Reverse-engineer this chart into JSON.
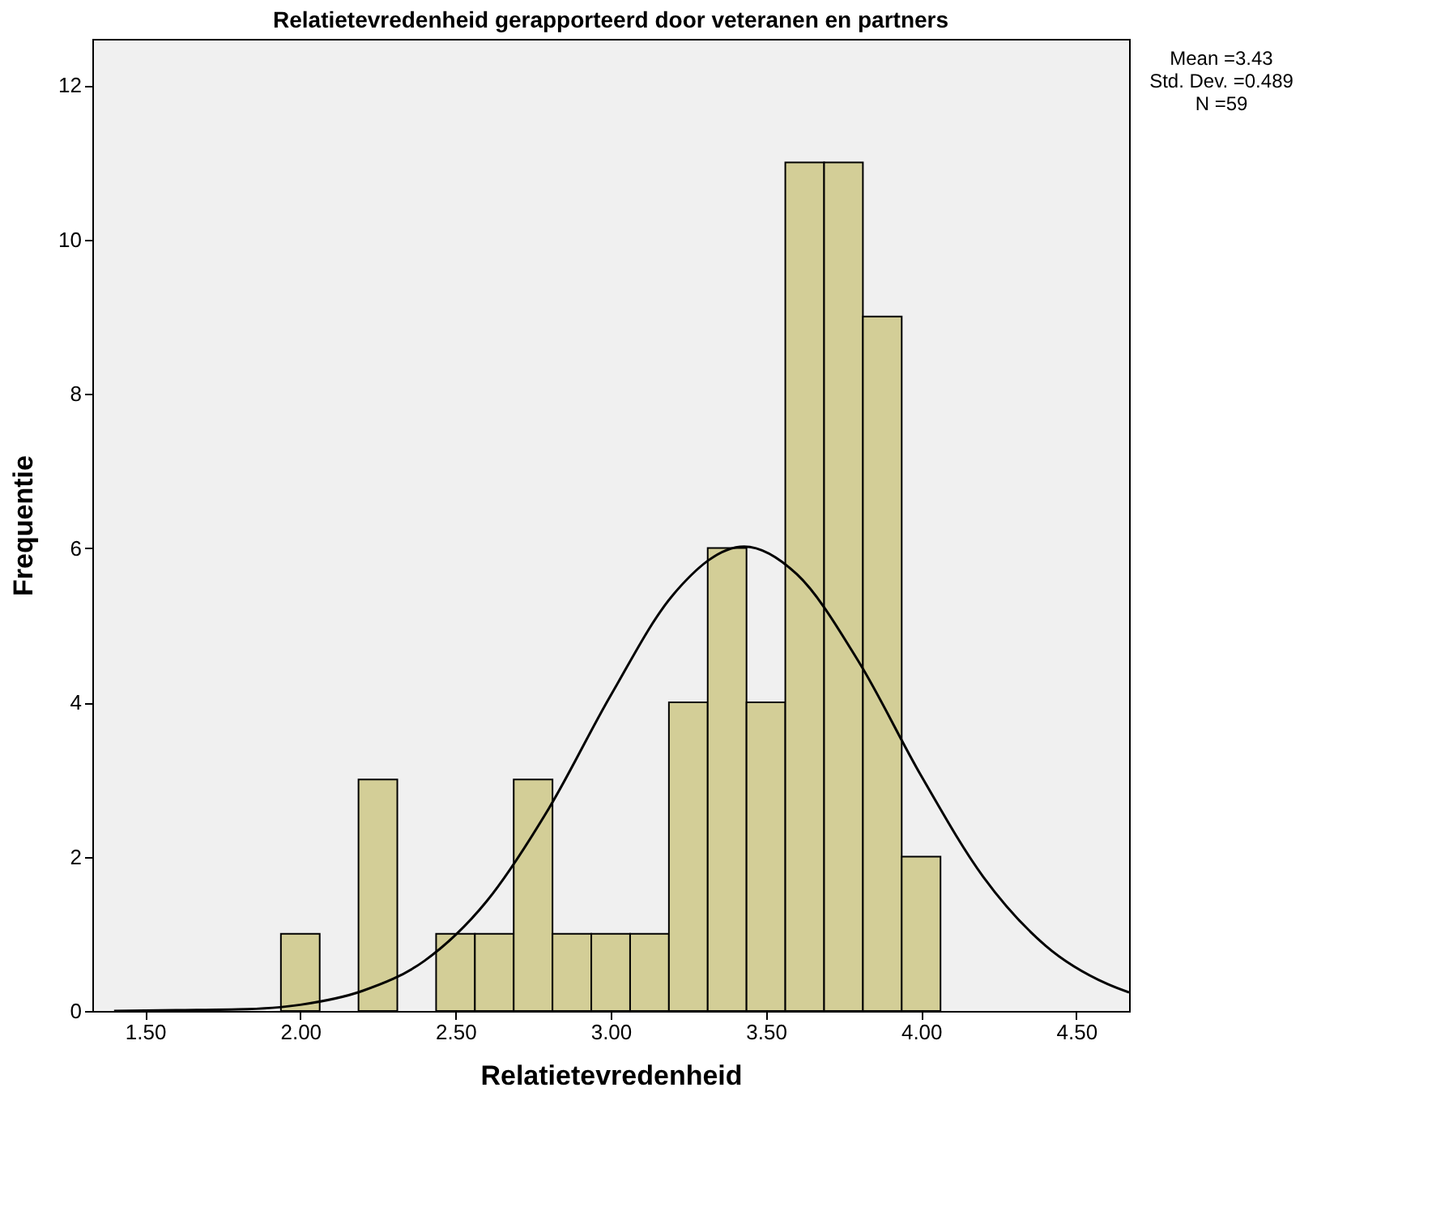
{
  "chart_data": {
    "type": "histogram",
    "title": "Relatietevredenheid gerapporteerd door veteranen en partners",
    "xlabel": "Relatietevredenheid",
    "ylabel": "Frequentie",
    "bins": [
      1.9375,
      2.0625,
      2.1875,
      2.3125,
      2.4375,
      2.5625,
      2.6875,
      2.8125,
      2.9375,
      3.0625,
      3.1875,
      3.3125,
      3.4375,
      3.5625,
      3.6875,
      3.8125,
      3.9375,
      4.0625
    ],
    "values": [
      1,
      0,
      3,
      0,
      1,
      1,
      3,
      1,
      1,
      1,
      4,
      6,
      4,
      11,
      11,
      9,
      2
    ],
    "color": "#d3ce97",
    "series": [
      {
        "type": "line",
        "color": "#000000",
        "x": [
          1.4,
          1.6,
          1.8,
          2.0,
          2.2,
          2.4,
          2.6,
          2.8,
          3.0,
          3.2,
          3.43,
          3.6,
          3.8,
          4.0,
          4.2,
          4.4,
          4.6,
          4.67
        ],
        "values": [
          0.0,
          0.01,
          0.02,
          0.08,
          0.26,
          0.65,
          1.42,
          2.62,
          4.09,
          5.39,
          6.02,
          5.66,
          4.52,
          3.05,
          1.74,
          0.85,
          0.35,
          0.24
        ]
      }
    ],
    "xlim": [
      1.33,
      4.67
    ],
    "ylim": [
      0,
      12.6
    ],
    "xticks": [
      {
        "value": 1.5,
        "label": "1.50"
      },
      {
        "value": 2.0,
        "label": "2.00"
      },
      {
        "value": 2.5,
        "label": "2.50"
      },
      {
        "value": 3.0,
        "label": "3.00"
      },
      {
        "value": 3.5,
        "label": "3.50"
      },
      {
        "value": 4.0,
        "label": "4.00"
      },
      {
        "value": 4.5,
        "label": "4.50"
      }
    ],
    "yticks": [
      0,
      2,
      4,
      6,
      8,
      10,
      12
    ],
    "annotations": [
      "Mean =3.43",
      "Std. Dev. =0.489",
      "N =59"
    ],
    "grid": false
  }
}
